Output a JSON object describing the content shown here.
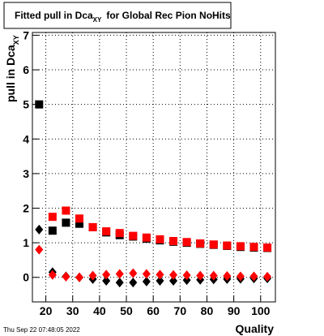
{
  "chart_data": {
    "type": "scatter",
    "title": {
      "main": "Fitted pull in Dca",
      "sub": "XY",
      "rest": "for Global Rec Pion NoHits"
    },
    "y_label": {
      "main": "pull in Dca",
      "sub": "XY"
    },
    "x_label": "Quality",
    "timestamp": "Thu Sep 22 07:48:05 2022",
    "x": [
      17.5,
      22.5,
      27.5,
      32.5,
      37.5,
      42.5,
      47.5,
      52.5,
      57.5,
      62.5,
      67.5,
      72.5,
      77.5,
      82.5,
      87.5,
      92.5,
      97.5,
      102.5
    ],
    "series": [
      {
        "color": "#000000",
        "marker": "square",
        "values": [
          5.0,
          1.35,
          1.58,
          1.55,
          1.45,
          1.3,
          1.22,
          1.18,
          1.12,
          1.07,
          1.03,
          1.0,
          0.97,
          0.94,
          0.91,
          0.88,
          0.86,
          0.85
        ]
      },
      {
        "color": "#ff0000",
        "marker": "square",
        "values": [
          null,
          1.75,
          1.93,
          1.7,
          1.45,
          1.33,
          1.28,
          1.2,
          1.15,
          1.1,
          1.05,
          1.02,
          0.98,
          0.95,
          0.92,
          0.9,
          0.88,
          0.86
        ]
      },
      {
        "color": "#000000",
        "marker": "diamond",
        "values": [
          1.38,
          0.15,
          0.03,
          0.0,
          -0.05,
          -0.1,
          -0.15,
          -0.15,
          -0.12,
          -0.1,
          -0.1,
          -0.08,
          -0.07,
          -0.06,
          -0.05,
          -0.04,
          -0.03,
          -0.03
        ]
      },
      {
        "color": "#ff0000",
        "marker": "diamond",
        "values": [
          0.8,
          0.07,
          0.02,
          0.0,
          0.05,
          0.08,
          0.1,
          0.12,
          0.1,
          0.08,
          0.07,
          0.06,
          0.05,
          0.05,
          0.04,
          0.03,
          0.03,
          0.02
        ]
      }
    ],
    "xlim": [
      15,
      105.5
    ],
    "ylim": [
      -0.71,
      7.08
    ],
    "xticks": [
      20,
      30,
      40,
      50,
      60,
      70,
      80,
      90,
      100
    ],
    "yticks": [
      0,
      1,
      2,
      3,
      4,
      5,
      6,
      7
    ],
    "grid": true
  }
}
